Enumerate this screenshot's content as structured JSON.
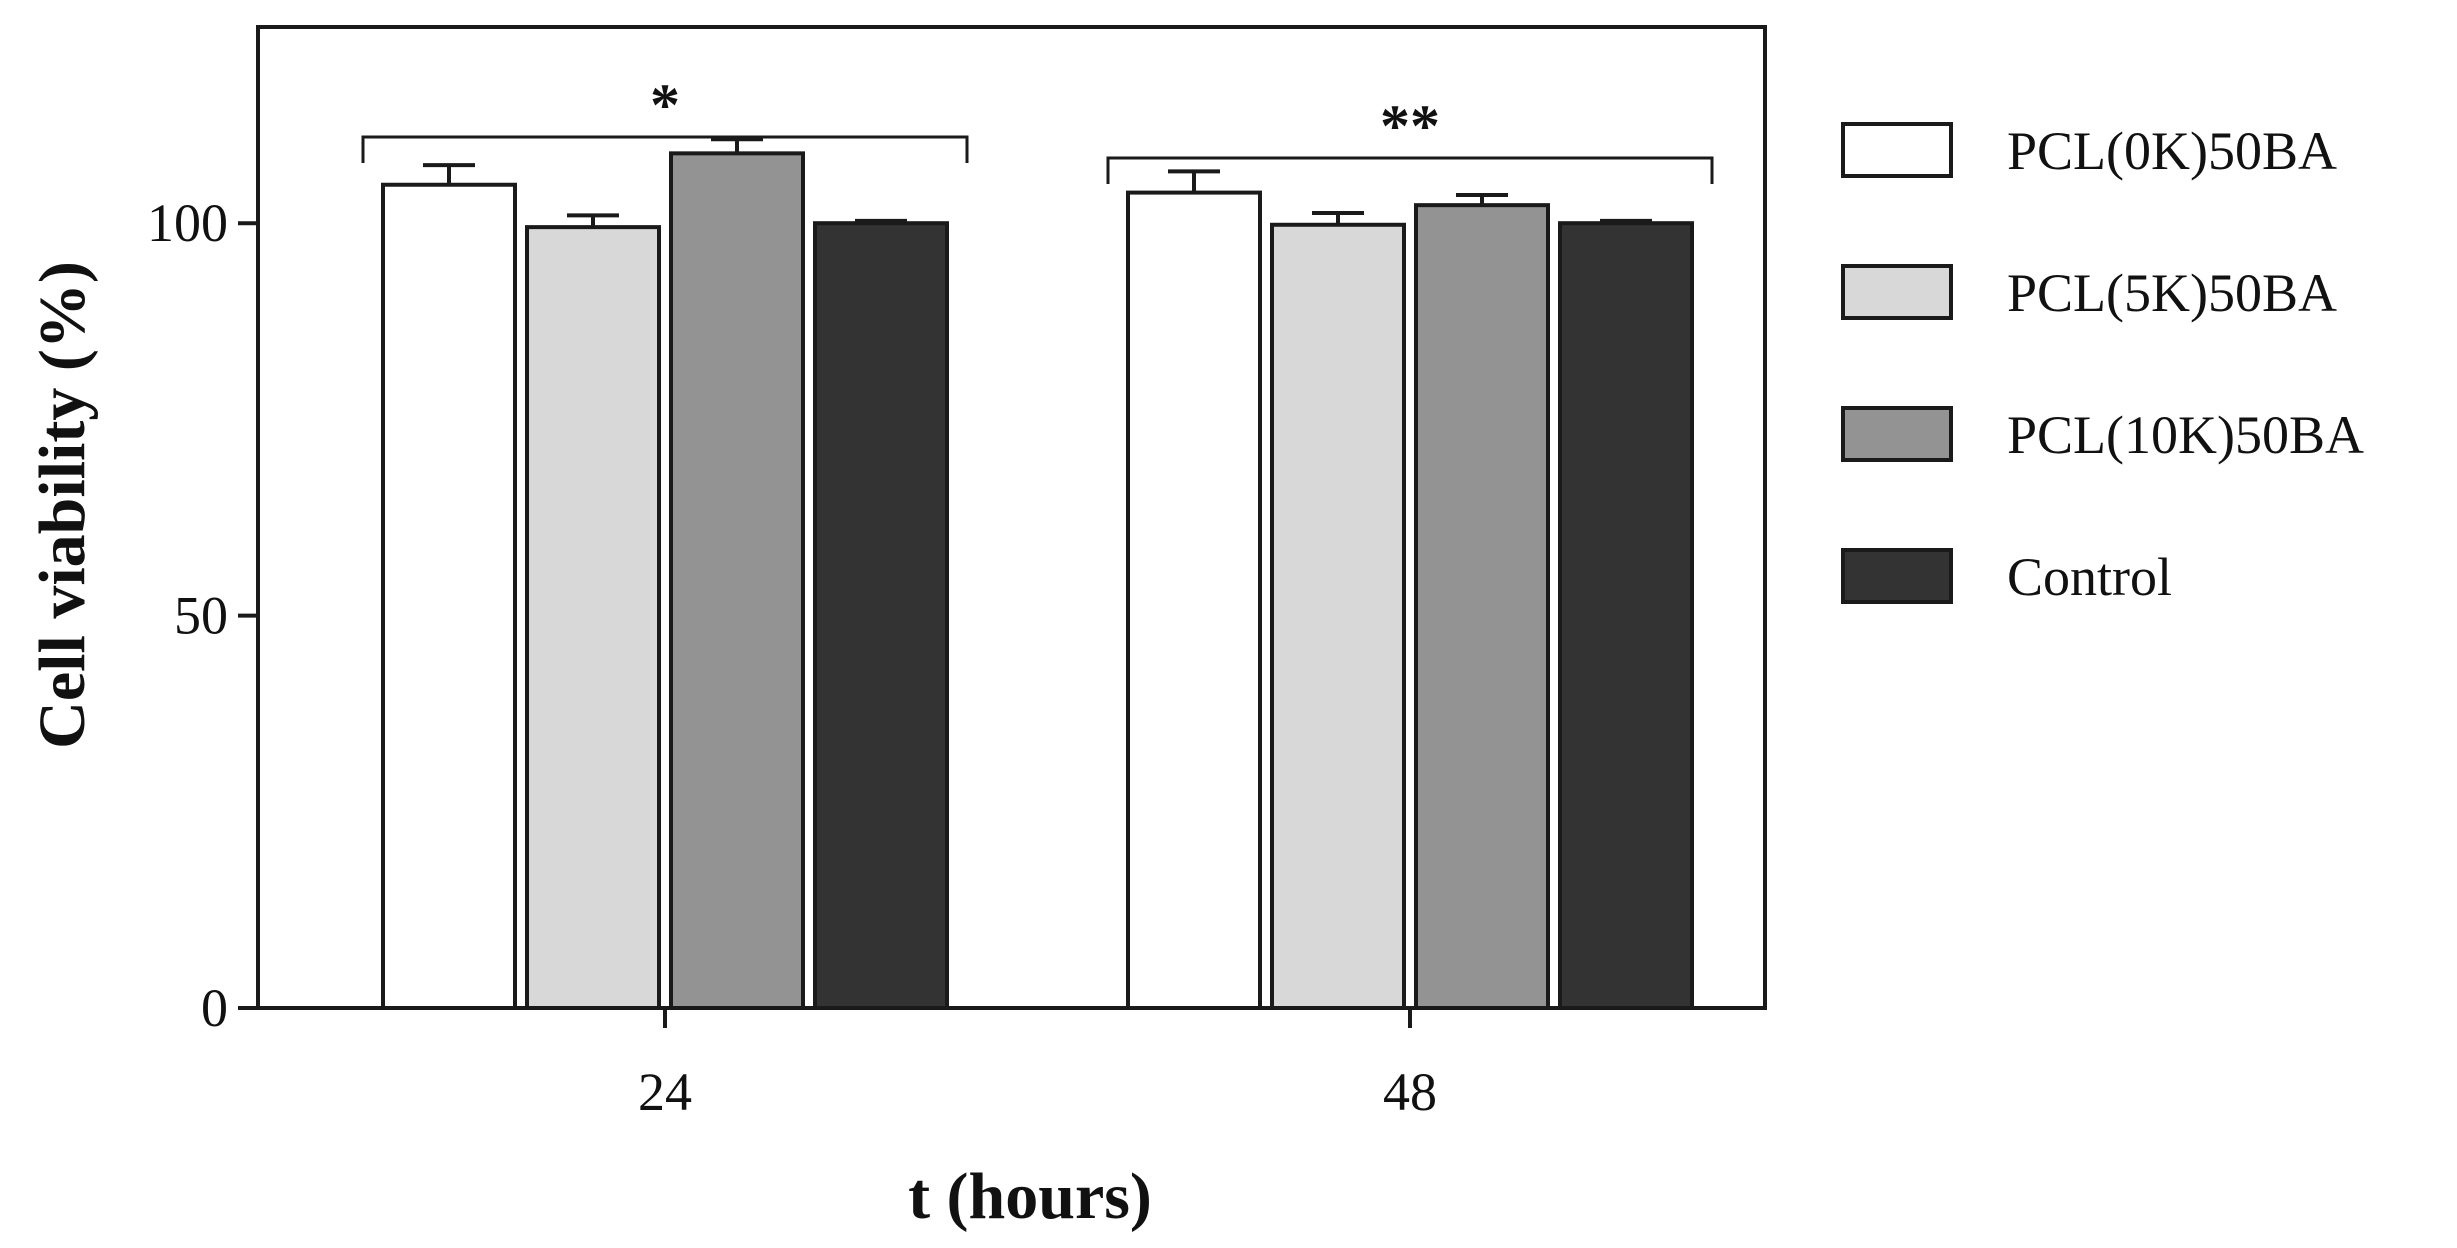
{
  "chart_data": {
    "type": "bar",
    "title": "",
    "xlabel": "t (hours)",
    "ylabel": "Cell viability (%)",
    "categories": [
      "24",
      "48"
    ],
    "ylim": [
      0,
      125
    ],
    "yticks": [
      0,
      50,
      100
    ],
    "ytick_labels": [
      "0",
      "50",
      "100"
    ],
    "legend_position": "right",
    "series": [
      {
        "name": "PCL(0K)50BA",
        "color": "#ffffff",
        "values": [
          104.9,
          103.9
        ],
        "errors": [
          2.5,
          2.7
        ]
      },
      {
        "name": "PCL(5K)50BA",
        "color": "#d8d8d8",
        "values": [
          99.5,
          99.8
        ],
        "errors": [
          1.5,
          1.5
        ]
      },
      {
        "name": "PCL(10K)50BA",
        "color": "#939393",
        "values": [
          108.9,
          102.3
        ],
        "errors": [
          1.8,
          1.3
        ]
      },
      {
        "name": "Control",
        "color": "#333333",
        "values": [
          100.0,
          100.0
        ],
        "errors": [
          0.3,
          0.3
        ]
      }
    ],
    "significance": [
      {
        "label": "*",
        "category": "24"
      },
      {
        "label": "**",
        "category": "48"
      }
    ]
  }
}
